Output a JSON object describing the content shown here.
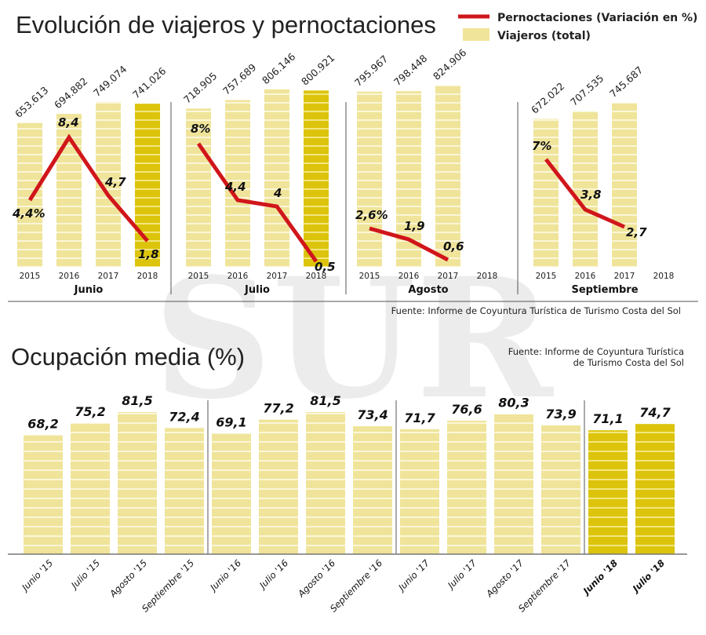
{
  "watermark": "SUR",
  "chart_data": [
    {
      "type": "bar+line",
      "title": "Evolución de viajeros y pernoctaciones",
      "legend": {
        "placement": "top-right",
        "line_label": "Pernoctaciones (Variación en %)",
        "bar_label": "Viajeros (total)"
      },
      "source": "Fuente:  Informe de Coyuntura Turística de Turismo Costa del Sol",
      "years": [
        "2015",
        "2016",
        "2017",
        "2018"
      ],
      "groups": [
        {
          "month": "Junio",
          "viajeros": [
            653613,
            694882,
            749074,
            741026
          ],
          "viajeros_labels": [
            "653.613",
            "694.882",
            "749.074",
            "741.026"
          ],
          "pernoctaciones": [
            4.4,
            8.4,
            4.7,
            1.8
          ],
          "pernoctaciones_labels": [
            "4,4%",
            "8,4",
            "4,7",
            "1,8"
          ]
        },
        {
          "month": "Julio",
          "viajeros": [
            718905,
            757689,
            806146,
            800921
          ],
          "viajeros_labels": [
            "718.905",
            "757.689",
            "806.146",
            "800.921"
          ],
          "pernoctaciones": [
            8,
            4.4,
            4,
            0.5
          ],
          "pernoctaciones_labels": [
            "8%",
            "4,4",
            "4",
            "0,5"
          ]
        },
        {
          "month": "Agosto",
          "viajeros": [
            795967,
            798448,
            824906,
            null
          ],
          "viajeros_labels": [
            "795.967",
            "798.448",
            "824.906"
          ],
          "pernoctaciones": [
            2.6,
            1.9,
            0.6,
            null
          ],
          "pernoctaciones_labels": [
            "2,6%",
            "1,9",
            "0,6"
          ]
        },
        {
          "month": "Septiembre",
          "viajeros": [
            672022,
            707535,
            745687,
            null
          ],
          "viajeros_labels": [
            "672.022",
            "707.535",
            "745.687"
          ],
          "pernoctaciones": [
            7,
            3.8,
            2.7,
            null
          ],
          "pernoctaciones_labels": [
            "7%",
            "3,8",
            "2,7"
          ]
        }
      ],
      "highlight_year": "2018"
    },
    {
      "type": "bar",
      "title": "Ocupación media (%)",
      "source_line1": "Fuente:  Informe de Coyuntura Turística",
      "source_line2": "de Turismo Costa del Sol",
      "categories": [
        "Junio '15",
        "Julio '15",
        "Agosto '15",
        "Septiembre '15",
        "Junio '16",
        "Julio '16",
        "Agosto '16",
        "Septiembre '16",
        "Junio '17",
        "Julio '17",
        "Agosto '17",
        "Septiembre '17",
        "Junio '18",
        "Julio '18"
      ],
      "values": [
        68.2,
        75.2,
        81.5,
        72.4,
        69.1,
        77.2,
        81.5,
        73.4,
        71.7,
        76.6,
        80.3,
        73.9,
        71.1,
        74.7
      ],
      "value_labels": [
        "68,2",
        "75,2",
        "81,5",
        "72,4",
        "69,1",
        "77,2",
        "81,5",
        "73,4",
        "71,7",
        "76,6",
        "80,3",
        "73,9",
        "71,1",
        "74,7"
      ],
      "highlighted": [
        "Junio '18",
        "Julio '18"
      ]
    }
  ],
  "colors": {
    "bar": "#efe49a",
    "bar_highlight": "#dcc40c",
    "line": "#d0161b",
    "text": "#222222"
  }
}
